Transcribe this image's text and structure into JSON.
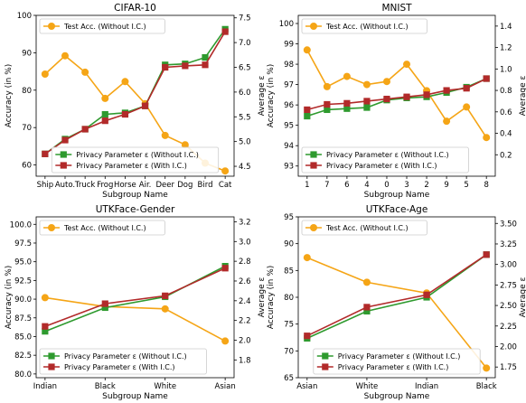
{
  "colors": {
    "test": "#f5a516",
    "without": "#2e9a2e",
    "with": "#b22a2a"
  },
  "chart_data": [
    {
      "type": "line",
      "title": "CIFAR-10",
      "xlabel": "Subgroup Name",
      "ylabel": "Accuracy (in %)",
      "y2label": "Average ε",
      "categories": [
        "Ship",
        "Auto.",
        "Truck",
        "Frog",
        "Horse",
        "Air.",
        "Deer",
        "Dog",
        "Bird",
        "Cat"
      ],
      "ylim": [
        57,
        100
      ],
      "yticks": [
        60,
        70,
        80,
        90,
        100
      ],
      "y2lim": [
        4.3,
        7.55
      ],
      "y2ticks": [
        4.5,
        5.0,
        5.5,
        6.0,
        6.5,
        7.0,
        7.5
      ],
      "legend_test": "upper-left",
      "legend_privacy": "lower-center",
      "series": [
        {
          "name": "Test Acc. (Without I.C.)",
          "axis": "left",
          "values": [
            84.3,
            89.2,
            84.8,
            77.8,
            82.3,
            76.4,
            67.9,
            65.4,
            60.5,
            58.4
          ]
        },
        {
          "name": "Privacy Parameter ε (Without I.C.)",
          "axis": "right",
          "values": [
            4.75,
            5.05,
            5.25,
            5.55,
            5.58,
            5.72,
            6.55,
            6.57,
            6.7,
            7.27
          ]
        },
        {
          "name": "Privacy Parameter ε (With I.C.)",
          "axis": "right",
          "values": [
            4.75,
            5.03,
            5.25,
            5.42,
            5.55,
            5.72,
            6.5,
            6.53,
            6.55,
            7.22
          ]
        }
      ]
    },
    {
      "type": "line",
      "title": "MNIST",
      "xlabel": "Subgroup Name",
      "ylabel": "Accuracy (in %)",
      "y2label": "Average ε",
      "categories": [
        "1",
        "7",
        "6",
        "4",
        "0",
        "3",
        "2",
        "9",
        "5",
        "8"
      ],
      "ylim": [
        92.5,
        100.4
      ],
      "yticks": [
        93,
        94,
        95,
        96,
        97,
        98,
        99,
        100
      ],
      "y2lim": [
        0.0,
        1.5
      ],
      "y2ticks": [
        0.2,
        0.4,
        0.6,
        0.8,
        1.0,
        1.2,
        1.4
      ],
      "legend_test": "upper-left",
      "legend_privacy": "lower-left",
      "series": [
        {
          "name": "Test Acc. (Without I.C.)",
          "axis": "left",
          "values": [
            98.7,
            96.9,
            97.4,
            97.0,
            97.15,
            98.0,
            96.7,
            95.2,
            95.9,
            94.4
          ]
        },
        {
          "name": "Privacy Parameter ε (Without I.C.)",
          "axis": "right",
          "values": [
            0.56,
            0.62,
            0.63,
            0.64,
            0.71,
            0.73,
            0.74,
            0.78,
            0.83,
            0.91
          ]
        },
        {
          "name": "Privacy Parameter ε (With I.C.)",
          "axis": "right",
          "values": [
            0.62,
            0.67,
            0.68,
            0.7,
            0.72,
            0.74,
            0.76,
            0.8,
            0.82,
            0.91
          ]
        }
      ]
    },
    {
      "type": "line",
      "title": "UTKFace-Gender",
      "xlabel": "Subgroup Name",
      "ylabel": "Accuracy (in %)",
      "y2label": "Average ε",
      "categories": [
        "Indian",
        "Black",
        "White",
        "Asian"
      ],
      "ylim": [
        79.5,
        101
      ],
      "yticks": [
        80.0,
        82.5,
        85.0,
        87.5,
        90.0,
        92.5,
        95.0,
        97.5,
        100.0
      ],
      "y2lim": [
        1.62,
        3.25
      ],
      "y2ticks": [
        1.8,
        2.0,
        2.2,
        2.4,
        2.6,
        2.8,
        3.0,
        3.2
      ],
      "legend_test": "upper-left",
      "legend_privacy": "lower-left",
      "series": [
        {
          "name": "Test Acc. (Without I.C.)",
          "axis": "left",
          "values": [
            90.2,
            89.0,
            88.7,
            84.4
          ]
        },
        {
          "name": "Privacy Parameter ε (Without I.C.)",
          "axis": "right",
          "values": [
            2.09,
            2.33,
            2.44,
            2.75
          ]
        },
        {
          "name": "Privacy Parameter ε (With I.C.)",
          "axis": "right",
          "values": [
            2.14,
            2.37,
            2.45,
            2.73
          ]
        }
      ]
    },
    {
      "type": "line",
      "title": "UTKFace-Age",
      "xlabel": "Subgroup Name",
      "ylabel": "Accuracy (in %)",
      "y2label": "Average ε",
      "categories": [
        "Asian",
        "White",
        "Indian",
        "Black"
      ],
      "ylim": [
        65,
        95
      ],
      "yticks": [
        65,
        70,
        75,
        80,
        85,
        90,
        95
      ],
      "y2lim": [
        1.62,
        3.58
      ],
      "y2ticks": [
        1.75,
        2.0,
        2.25,
        2.5,
        2.75,
        3.0,
        3.25,
        3.5
      ],
      "legend_test": "upper-left",
      "legend_privacy": "lower-center",
      "series": [
        {
          "name": "Test Acc. (Without I.C.)",
          "axis": "left",
          "values": [
            87.4,
            82.8,
            80.8,
            66.8
          ]
        },
        {
          "name": "Privacy Parameter ε (Without I.C.)",
          "axis": "right",
          "values": [
            2.1,
            2.43,
            2.6,
            3.12
          ]
        },
        {
          "name": "Privacy Parameter ε (With I.C.)",
          "axis": "right",
          "values": [
            2.13,
            2.48,
            2.63,
            3.12
          ]
        }
      ]
    }
  ]
}
